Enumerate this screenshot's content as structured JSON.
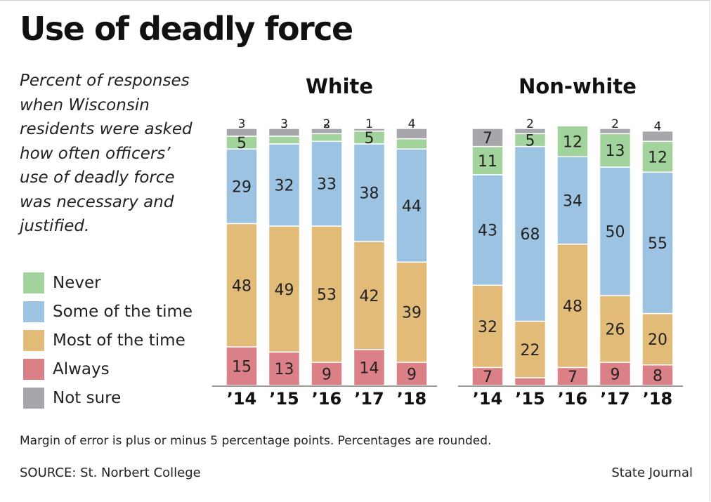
{
  "title": "Use of deadly force",
  "description": "Percent of responses when Wisconsin residents were asked how often officers’ use of deadly force was necessary and justified.",
  "legend": [
    {
      "label": "Never",
      "color": "#a3d39c"
    },
    {
      "label": "Some of the time",
      "color": "#9dc3e2"
    },
    {
      "label": "Most of the time",
      "color": "#e1bb77"
    },
    {
      "label": "Always",
      "color": "#dc8088"
    },
    {
      "label": "Not sure",
      "color": "#a7a7ab"
    }
  ],
  "footnote": "Margin of error is plus or minus 5 percentage points. Percentages are rounded.",
  "source": "SOURCE: St. Norbert College",
  "credit": "State Journal",
  "chart_data": [
    {
      "type": "bar",
      "stacked": true,
      "title": "White",
      "categories": [
        "’14",
        "’15",
        "’16",
        "’17",
        "’18"
      ],
      "series": [
        {
          "name": "Always",
          "values": [
            15,
            13,
            9,
            14,
            9
          ],
          "color": "#dc8088"
        },
        {
          "name": "Most of the time",
          "values": [
            48,
            49,
            53,
            42,
            39
          ],
          "color": "#e1bb77"
        },
        {
          "name": "Some of the time",
          "values": [
            29,
            32,
            33,
            38,
            44
          ],
          "color": "#9dc3e2"
        },
        {
          "name": "Never",
          "values": [
            5,
            3,
            3,
            5,
            4
          ],
          "color": "#a3d39c"
        },
        {
          "name": "Not sure",
          "values": [
            3,
            3,
            2,
            1,
            4
          ],
          "color": "#a7a7ab"
        }
      ],
      "ylim": [
        0,
        100
      ]
    },
    {
      "type": "bar",
      "stacked": true,
      "title": "Non-white",
      "categories": [
        "’14",
        "’15",
        "’16",
        "’17",
        "’18"
      ],
      "series": [
        {
          "name": "Always",
          "values": [
            7,
            3,
            7,
            9,
            8
          ],
          "color": "#dc8088"
        },
        {
          "name": "Most of the time",
          "values": [
            32,
            22,
            48,
            26,
            20
          ],
          "color": "#e1bb77"
        },
        {
          "name": "Some of the time",
          "values": [
            43,
            68,
            34,
            50,
            55
          ],
          "color": "#9dc3e2"
        },
        {
          "name": "Never",
          "values": [
            11,
            5,
            12,
            13,
            12
          ],
          "color": "#a3d39c"
        },
        {
          "name": "Not sure",
          "values": [
            7,
            2,
            0,
            2,
            4
          ],
          "color": "#a7a7ab"
        }
      ],
      "ylim": [
        0,
        100
      ]
    }
  ]
}
